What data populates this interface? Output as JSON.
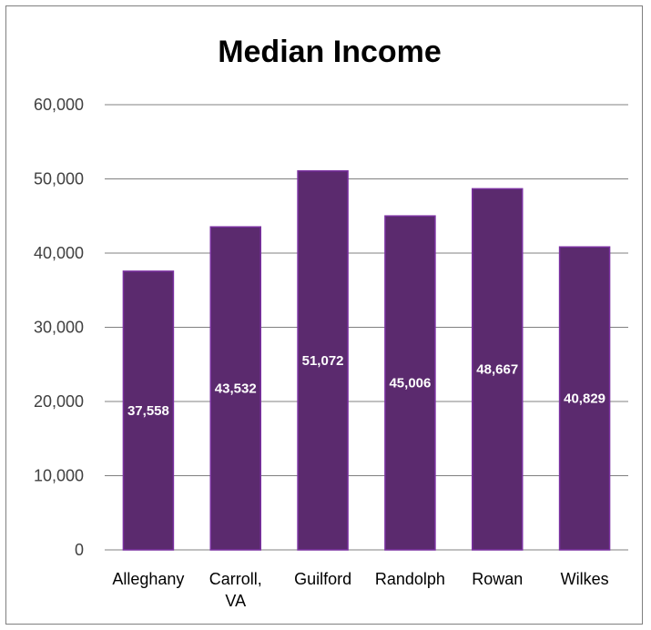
{
  "chart_data": {
    "type": "bar",
    "title": "Median Income",
    "categories": [
      "Alleghany",
      "Carroll, VA",
      "Guilford",
      "Randolph",
      "Rowan",
      "Wilkes"
    ],
    "category_lines": [
      [
        "Alleghany"
      ],
      [
        "Carroll,",
        "VA"
      ],
      [
        "Guilford"
      ],
      [
        "Randolph"
      ],
      [
        "Rowan"
      ],
      [
        "Wilkes"
      ]
    ],
    "values": [
      37558,
      43532,
      51072,
      45006,
      48667,
      40829
    ],
    "value_labels": [
      "37,558",
      "43,532",
      "51,072",
      "45,006",
      "48,667",
      "40,829"
    ],
    "yticks": [
      0,
      10000,
      20000,
      30000,
      40000,
      50000,
      60000
    ],
    "ytick_labels": [
      "0",
      "10,000",
      "20,000",
      "30,000",
      "40,000",
      "50,000",
      "60,000"
    ],
    "ylim": [
      0,
      60000
    ],
    "grid": true,
    "legend": "none",
    "bar_color": "#5b2a6e",
    "bar_edge_color": "#7a30a0",
    "grid_color": "#808080"
  }
}
